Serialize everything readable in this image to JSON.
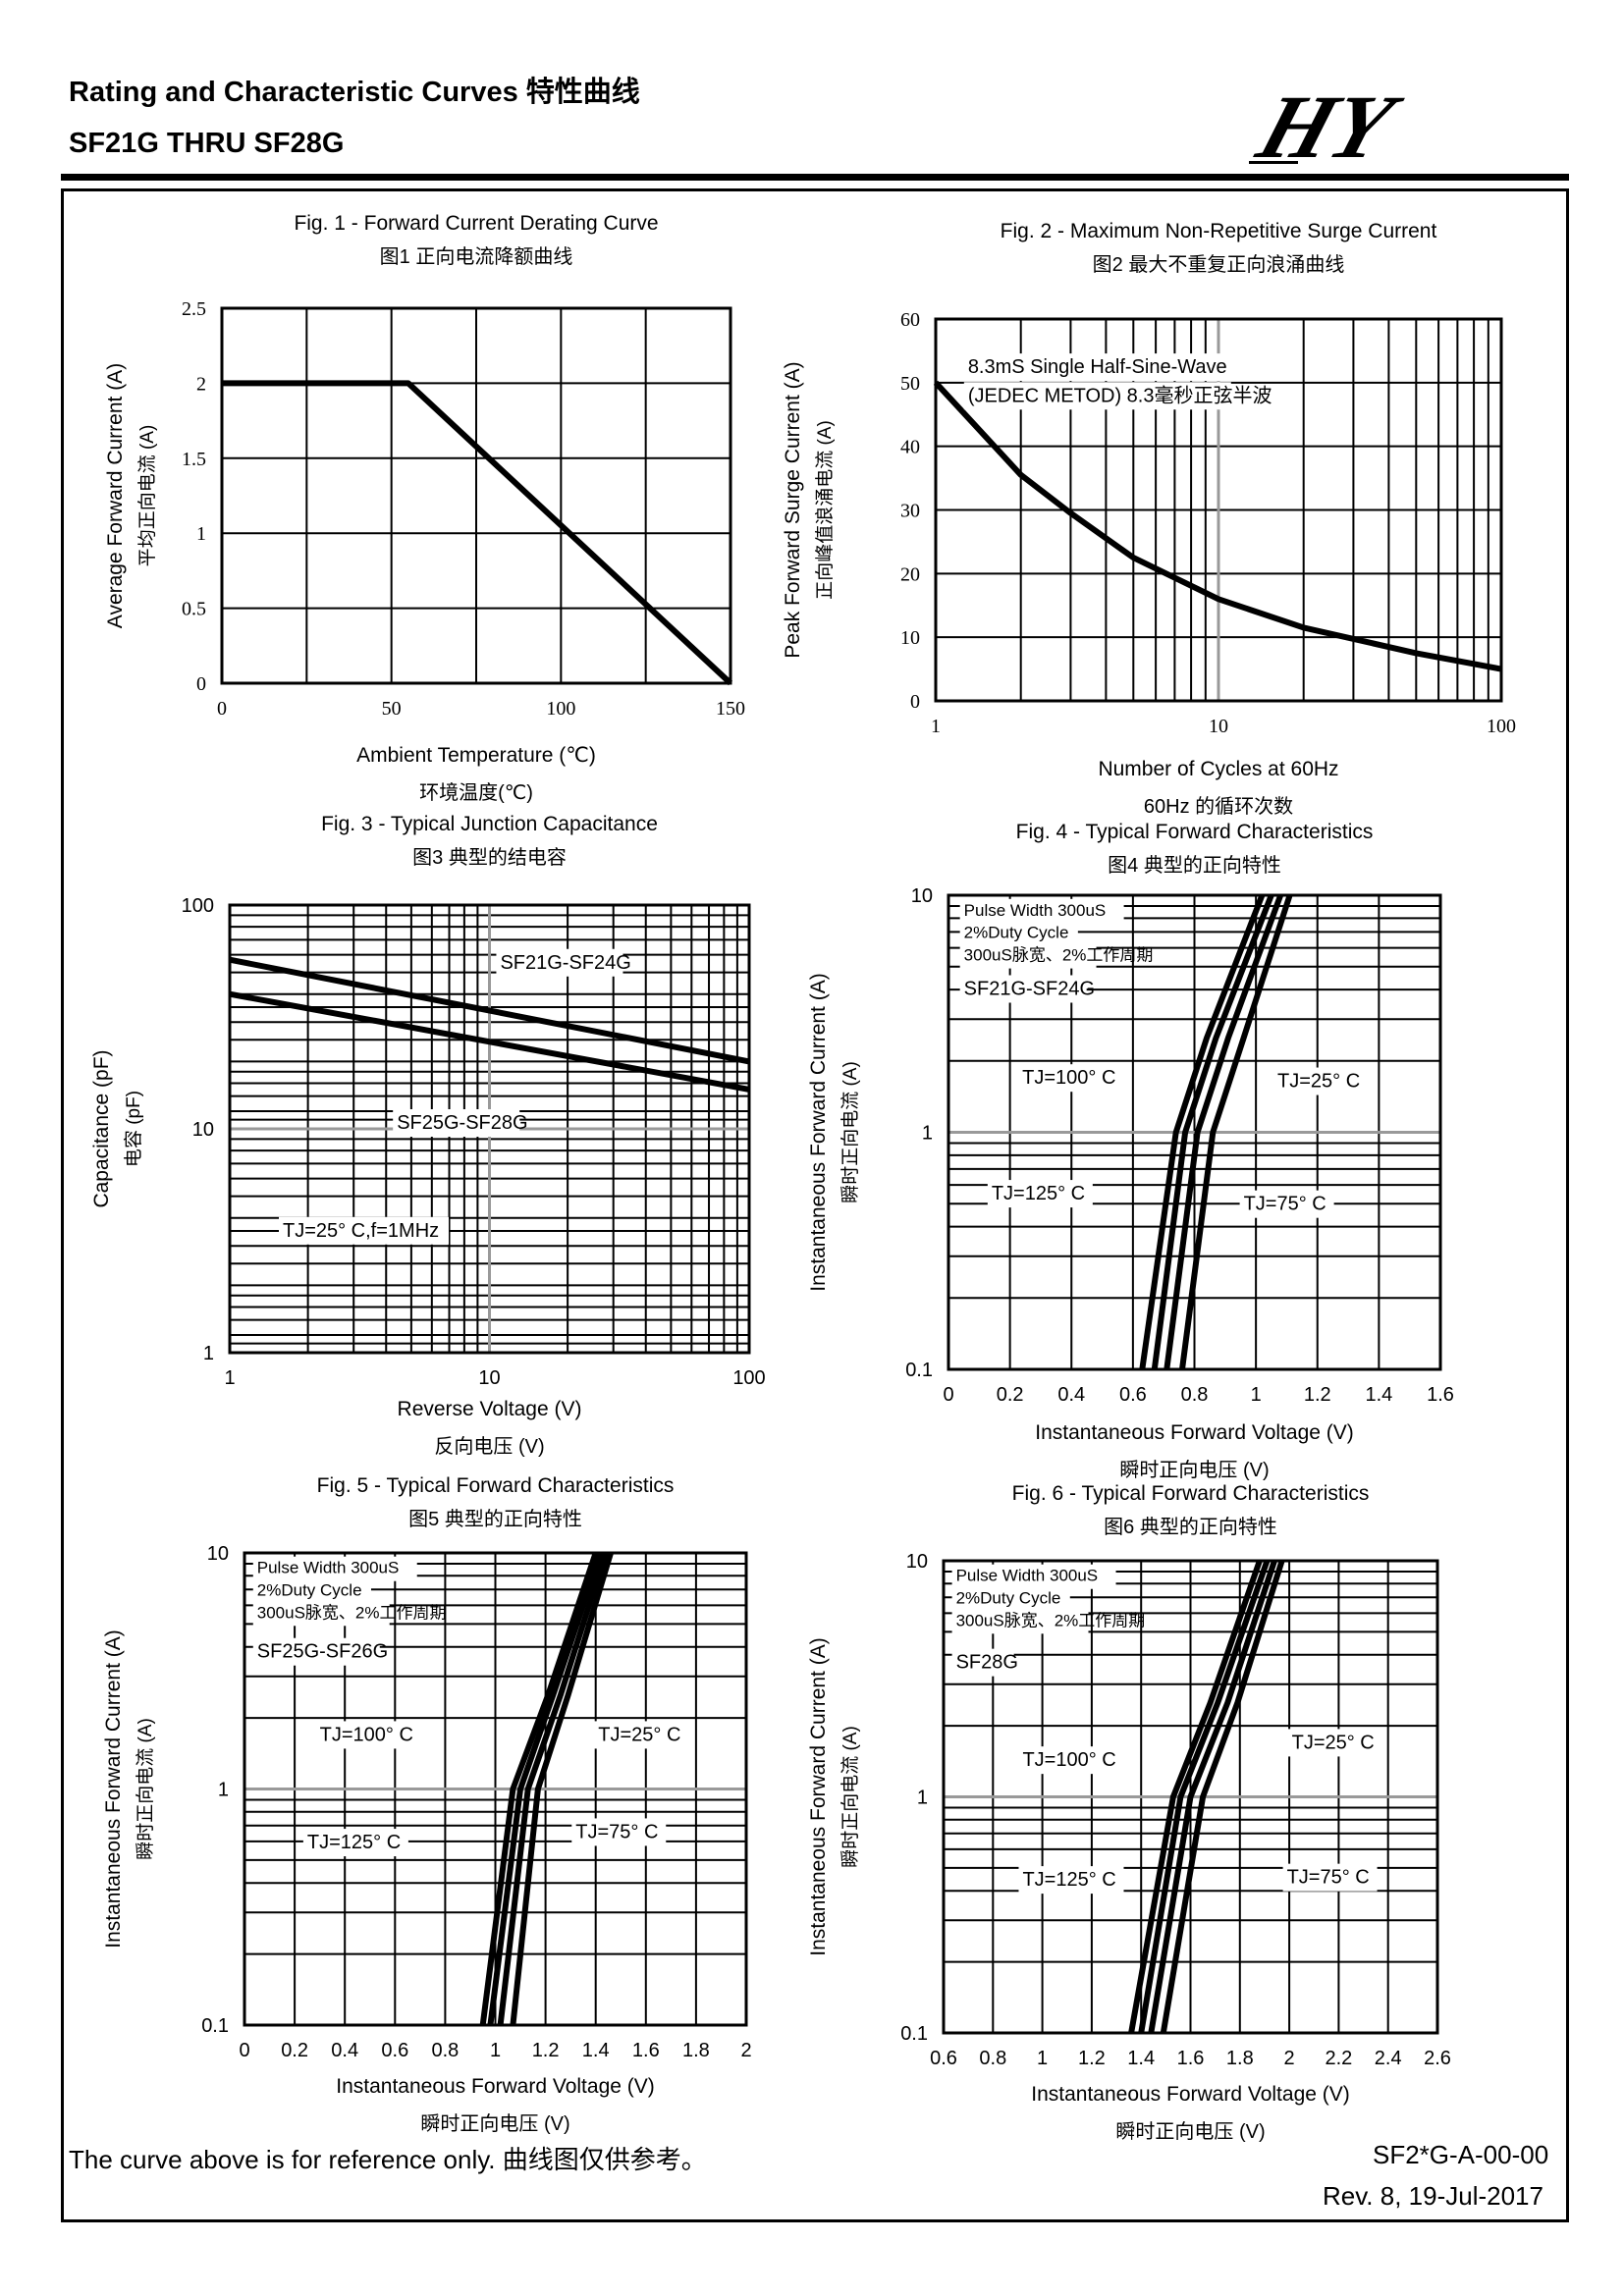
{
  "header": {
    "title": "Rating and Characteristic Curves 特性曲线",
    "subtitle": "SF21G THRU SF28G",
    "logo_text": "HY"
  },
  "footer": {
    "disclaimer": "The curve above is for reference only.  曲线图仅供参考。",
    "doc_code": "SF2*G-A-00-00",
    "revision": "Rev. 8, 19-Jul-2017"
  },
  "chart_data": [
    {
      "id": "fig1",
      "type": "line",
      "title": "Fig. 1 - Forward Current Derating Curve",
      "title_cn": "图1 正向电流降额曲线",
      "xlabel": "Ambient Temperature (℃)",
      "xlabel_cn": "环境温度(℃)",
      "ylabel": "Average Forward Current (A)",
      "ylabel_cn": "平均正向电流 (A)",
      "xscale": "linear",
      "yscale": "linear",
      "xlim": [
        0,
        150
      ],
      "ylim": [
        0,
        2.5
      ],
      "xticks": [
        0,
        50,
        100,
        150
      ],
      "xtick_labels": [
        "0",
        "50",
        "100",
        "150"
      ],
      "yticks": [
        0,
        0.5,
        1,
        1.5,
        2,
        2.5
      ],
      "ytick_labels": [
        "0",
        "0.5",
        "1",
        "1.5",
        "2",
        "2.5"
      ],
      "vgrid": [
        0,
        25,
        50,
        75,
        100,
        125,
        150
      ],
      "hgrid": [
        0,
        0.5,
        1,
        1.5,
        2,
        2.5
      ],
      "series": [
        {
          "x": [
            0,
            55,
            150
          ],
          "y": [
            2.0,
            2.0,
            0
          ]
        }
      ],
      "annotations": []
    },
    {
      "id": "fig2",
      "type": "line",
      "title": "Fig. 2 - Maximum Non-Repetitive Surge Current",
      "title_cn": "图2 最大不重复正向浪涌曲线",
      "xlabel": "Number of Cycles at 60Hz",
      "xlabel_cn": "60Hz 的循环次数",
      "ylabel": "Peak Forward Surge Current (A)",
      "ylabel_cn": "正向峰值浪涌电流 (A)",
      "xscale": "log",
      "yscale": "linear",
      "xlim": [
        1,
        100
      ],
      "ylim": [
        0,
        60
      ],
      "xticks": [
        1,
        10,
        100
      ],
      "xtick_labels": [
        "1",
        "10",
        "100"
      ],
      "yticks": [
        0,
        10,
        20,
        30,
        40,
        50,
        60
      ],
      "ytick_labels": [
        "0",
        "10",
        "20",
        "30",
        "40",
        "50",
        "60"
      ],
      "vgrid": [
        2,
        3,
        4,
        5,
        6,
        7,
        8,
        9,
        20,
        30,
        40,
        50,
        60,
        70,
        80,
        90
      ],
      "hgrid": [
        10,
        20,
        30,
        40,
        50
      ],
      "series": [
        {
          "x": [
            1,
            2,
            3,
            5,
            10,
            20,
            50,
            100
          ],
          "y": [
            50,
            35.5,
            29.5,
            22.5,
            16,
            11.5,
            7.5,
            5
          ]
        }
      ],
      "annotations": [
        {
          "text": "8.3mS Single Half-Sine-Wave",
          "x": 1.3,
          "y": 51.5
        },
        {
          "text": "(JEDEC METOD)  8.3毫秒正弦半波",
          "x": 1.3,
          "y": 47
        }
      ]
    },
    {
      "id": "fig3",
      "type": "line",
      "title": "Fig. 3 - Typical Junction Capacitance",
      "title_cn": "图3  典型的结电容",
      "xlabel": "Reverse Voltage (V)",
      "xlabel_cn": "反向电压 (V)",
      "ylabel": "Capacitance (pF)",
      "ylabel_cn": "电容 (pF)",
      "xscale": "log",
      "yscale": "log",
      "xlim": [
        1,
        100
      ],
      "ylim": [
        1,
        100
      ],
      "xticks": [
        1,
        10,
        100
      ],
      "xtick_labels": [
        "1",
        "10",
        "100"
      ],
      "yticks": [
        1,
        10,
        100
      ],
      "ytick_labels": [
        "1",
        "10",
        "100"
      ],
      "vgrid": [
        2,
        3,
        4,
        5,
        6,
        7,
        8,
        9,
        20,
        30,
        40,
        50,
        60,
        70,
        80,
        90
      ],
      "hgrid": [
        1.1,
        1.2,
        1.4,
        1.6,
        1.8,
        2,
        2.5,
        3,
        3.5,
        4,
        5,
        6,
        7,
        8,
        9,
        11,
        12,
        14,
        16,
        18,
        20,
        25,
        30,
        35,
        40,
        50,
        60,
        70,
        80,
        90
      ],
      "series": [
        {
          "name": "SF21G-SF24G",
          "x": [
            1,
            100
          ],
          "y": [
            57,
            20
          ]
        },
        {
          "name": "SF25G-SF28G",
          "x": [
            1,
            100
          ],
          "y": [
            40,
            15
          ]
        }
      ],
      "annotations": [
        {
          "text": "SF21G-SF24G",
          "x": 11,
          "y": 52
        },
        {
          "text": "SF25G-SF28G",
          "x": 4.4,
          "y": 10
        },
        {
          "text": "TJ=25° C,f=1MHz",
          "x": 1.6,
          "y": 3.3
        }
      ]
    },
    {
      "id": "fig4",
      "type": "line",
      "title": "Fig. 4 - Typical Forward Characteristics",
      "title_cn": "图4  典型的正向特性",
      "xlabel": "Instantaneous Forward Voltage (V)",
      "xlabel_cn": "瞬时正向电压 (V)",
      "ylabel": "Instantaneous Forward Current (A)",
      "ylabel_cn": "瞬时正向电流 (A)",
      "xscale": "linear",
      "yscale": "log",
      "xlim": [
        0,
        1.6
      ],
      "ylim": [
        0.1,
        10
      ],
      "xticks": [
        0,
        0.2,
        0.4,
        0.6,
        0.8,
        1,
        1.2,
        1.4,
        1.6
      ],
      "xtick_labels": [
        "0",
        "0.2",
        "0.4",
        "0.6",
        "0.8",
        "1",
        "1.2",
        "1.4",
        "1.6"
      ],
      "yticks": [
        0.1,
        1,
        10
      ],
      "ytick_labels": [
        "0.1",
        "1",
        "10"
      ],
      "vgrid": [
        0.2,
        0.4,
        0.6,
        0.8,
        1,
        1.2,
        1.4
      ],
      "hgrid": [
        0.2,
        0.3,
        0.4,
        0.5,
        0.6,
        0.7,
        0.8,
        0.9,
        2,
        3,
        4,
        5,
        6,
        7,
        8,
        9
      ],
      "series": [
        {
          "name": "TJ=125° C",
          "x": [
            0.63,
            0.74,
            0.84,
            1.02
          ],
          "y": [
            0.1,
            1,
            2.5,
            10
          ]
        },
        {
          "name": "TJ=100° C",
          "x": [
            0.67,
            0.77,
            0.87,
            1.05
          ],
          "y": [
            0.1,
            1,
            2.5,
            10
          ]
        },
        {
          "name": "TJ=75° C",
          "x": [
            0.71,
            0.81,
            0.91,
            1.08
          ],
          "y": [
            0.1,
            1,
            2.5,
            10
          ]
        },
        {
          "name": "TJ=25° C",
          "x": [
            0.76,
            0.86,
            0.96,
            1.11
          ],
          "y": [
            0.1,
            1,
            2.5,
            10
          ]
        }
      ],
      "annotations": [
        {
          "text": "Pulse Width 300uS",
          "x": 0.05,
          "y": 8.2
        },
        {
          "text": "2%Duty Cycle",
          "x": 0.05,
          "y": 6.6
        },
        {
          "text": "300uS脉宽、2%工作周期",
          "x": 0.05,
          "y": 5.3
        },
        {
          "text": "SF21G-SF24G",
          "x": 0.05,
          "y": 3.8
        },
        {
          "text": "TJ=100° C",
          "x": 0.24,
          "y": 1.6
        },
        {
          "text": "TJ=25° C",
          "x": 1.07,
          "y": 1.55
        },
        {
          "text": "TJ=125° C",
          "x": 0.14,
          "y": 0.52
        },
        {
          "text": "TJ=75° C",
          "x": 0.96,
          "y": 0.47
        }
      ]
    },
    {
      "id": "fig5",
      "type": "line",
      "title": "Fig. 5 - Typical Forward Characteristics",
      "title_cn": "图5  典型的正向特性",
      "xlabel": "Instantaneous Forward Voltage (V)",
      "xlabel_cn": "瞬时正向电压 (V)",
      "ylabel": "Instantaneous Forward Current (A)",
      "ylabel_cn": "瞬时正向电流 (A)",
      "xscale": "linear",
      "yscale": "log",
      "xlim": [
        0,
        2
      ],
      "ylim": [
        0.1,
        10
      ],
      "xticks": [
        0,
        0.2,
        0.4,
        0.6,
        0.8,
        1,
        1.2,
        1.4,
        1.6,
        1.8,
        2
      ],
      "xtick_labels": [
        "0",
        "0.2",
        "0.4",
        "0.6",
        "0.8",
        "1",
        "1.2",
        "1.4",
        "1.6",
        "1.8",
        "2"
      ],
      "yticks": [
        0.1,
        1,
        10
      ],
      "ytick_labels": [
        "0.1",
        "1",
        "10"
      ],
      "vgrid": [
        0.2,
        0.4,
        0.6,
        0.8,
        1,
        1.2,
        1.4,
        1.6,
        1.8
      ],
      "hgrid": [
        0.2,
        0.3,
        0.4,
        0.5,
        0.6,
        0.7,
        0.8,
        0.9,
        2,
        3,
        4,
        5,
        6,
        7,
        8,
        9
      ],
      "series": [
        {
          "name": "TJ=125° C",
          "x": [
            0.95,
            1.07,
            1.21,
            1.4
          ],
          "y": [
            0.1,
            1,
            2.5,
            10
          ]
        },
        {
          "name": "TJ=100° C",
          "x": [
            0.98,
            1.1,
            1.23,
            1.42
          ],
          "y": [
            0.1,
            1,
            2.5,
            10
          ]
        },
        {
          "name": "TJ=75° C",
          "x": [
            1.02,
            1.13,
            1.26,
            1.44
          ],
          "y": [
            0.1,
            1,
            2.5,
            10
          ]
        },
        {
          "name": "TJ=25° C",
          "x": [
            1.07,
            1.17,
            1.29,
            1.46
          ],
          "y": [
            0.1,
            1,
            2.5,
            10
          ]
        }
      ],
      "annotations": [
        {
          "text": "Pulse Width 300uS",
          "x": 0.05,
          "y": 8.2
        },
        {
          "text": "2%Duty Cycle",
          "x": 0.05,
          "y": 6.6
        },
        {
          "text": "300uS脉宽、2%工作周期",
          "x": 0.05,
          "y": 5.3
        },
        {
          "text": "SF25G-SF26G",
          "x": 0.05,
          "y": 3.6
        },
        {
          "text": "TJ=100° C",
          "x": 0.3,
          "y": 1.6
        },
        {
          "text": "TJ=25° C",
          "x": 1.41,
          "y": 1.6
        },
        {
          "text": "TJ=125° C",
          "x": 0.25,
          "y": 0.56
        },
        {
          "text": "TJ=75° C",
          "x": 1.32,
          "y": 0.62
        }
      ]
    },
    {
      "id": "fig6",
      "type": "line",
      "title": "Fig. 6 - Typical Forward Characteristics",
      "title_cn": "图6  典型的正向特性",
      "xlabel": "Instantaneous Forward Voltage (V)",
      "xlabel_cn": "瞬时正向电压 (V)",
      "ylabel": "Instantaneous Forward Current (A)",
      "ylabel_cn": "瞬时正向电流 (A)",
      "xscale": "linear",
      "yscale": "log",
      "xlim": [
        0.6,
        2.6
      ],
      "ylim": [
        0.1,
        10
      ],
      "xticks": [
        0.6,
        0.8,
        1,
        1.2,
        1.4,
        1.6,
        1.8,
        2,
        2.2,
        2.4,
        2.6
      ],
      "xtick_labels": [
        "0.6",
        "0.8",
        "1",
        "1.2",
        "1.4",
        "1.6",
        "1.8",
        "2",
        "2.2",
        "2.4",
        "2.6"
      ],
      "yticks": [
        0.1,
        1,
        10
      ],
      "ytick_labels": [
        "0.1",
        "1",
        "10"
      ],
      "vgrid": [
        0.8,
        1,
        1.2,
        1.4,
        1.6,
        1.8,
        2,
        2.2,
        2.4
      ],
      "hgrid": [
        0.2,
        0.3,
        0.4,
        0.5,
        0.6,
        0.7,
        0.8,
        0.9,
        2,
        3,
        4,
        5,
        6,
        7,
        8,
        9
      ],
      "series": [
        {
          "name": "TJ=125° C",
          "x": [
            1.36,
            1.53,
            1.68,
            1.88
          ],
          "y": [
            0.1,
            1,
            2.5,
            10
          ]
        },
        {
          "name": "TJ=100° C",
          "x": [
            1.4,
            1.56,
            1.71,
            1.91
          ],
          "y": [
            0.1,
            1,
            2.5,
            10
          ]
        },
        {
          "name": "TJ=75° C",
          "x": [
            1.44,
            1.6,
            1.75,
            1.94
          ],
          "y": [
            0.1,
            1,
            2.5,
            10
          ]
        },
        {
          "name": "TJ=25° C",
          "x": [
            1.49,
            1.65,
            1.79,
            1.97
          ],
          "y": [
            0.1,
            1,
            2.5,
            10
          ]
        }
      ],
      "annotations": [
        {
          "text": "Pulse Width 300uS",
          "x": 0.65,
          "y": 8.2
        },
        {
          "text": "2%Duty Cycle",
          "x": 0.65,
          "y": 6.6
        },
        {
          "text": "300uS脉宽、2%工作周期",
          "x": 0.65,
          "y": 5.3
        },
        {
          "text": "SF28G",
          "x": 0.65,
          "y": 3.5
        },
        {
          "text": "TJ=100° C",
          "x": 0.92,
          "y": 1.35
        },
        {
          "text": "TJ=25° C",
          "x": 2.01,
          "y": 1.6
        },
        {
          "text": "TJ=125° C",
          "x": 0.92,
          "y": 0.42
        },
        {
          "text": "TJ=75° C",
          "x": 1.99,
          "y": 0.43
        }
      ]
    }
  ]
}
